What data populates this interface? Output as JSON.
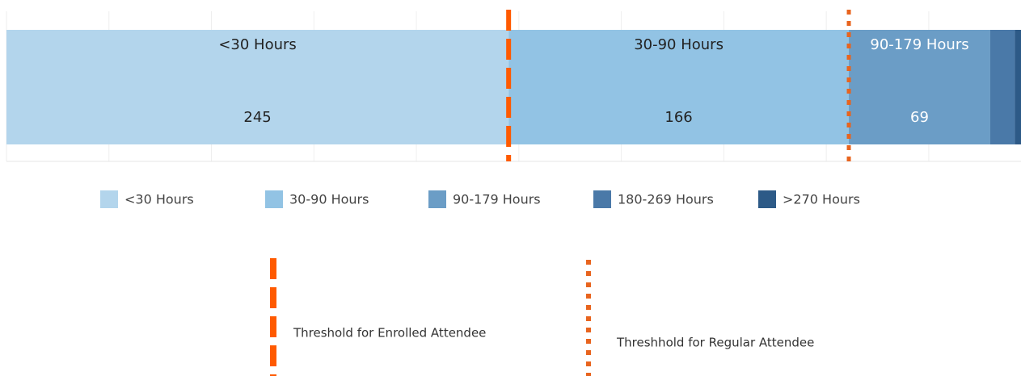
{
  "chart_data": {
    "type": "stacked-bar",
    "orientation": "horizontal",
    "series": [
      {
        "name": "<30 Hours",
        "color": "#b3d5ec",
        "values": [
          245
        ]
      },
      {
        "name": "30-90 Hours",
        "color": "#92c3e4",
        "values": [
          166
        ]
      },
      {
        "name": "90-179 Hours",
        "color": "#6b9dc6",
        "values": [
          69
        ]
      },
      {
        "name": "180-269 Hours",
        "color": "#4a79a8",
        "values": [
          12
        ]
      },
      {
        "name": ">270 Hours",
        "color": "#2d5a87",
        "values": [
          3
        ]
      }
    ],
    "xlim": [
      0,
      495
    ],
    "xticks": [
      0,
      50,
      100,
      150,
      200,
      250,
      300,
      350,
      400,
      450
    ],
    "grid": true,
    "thresholds": [
      {
        "label": "Threshold for Enrolled Attendee",
        "value": 245,
        "color": "#ff5a00",
        "style": "dashed"
      },
      {
        "label": "Threshhold for Regular Attendee",
        "value": 411,
        "color": "#e8641e",
        "style": "dotted"
      }
    ]
  }
}
